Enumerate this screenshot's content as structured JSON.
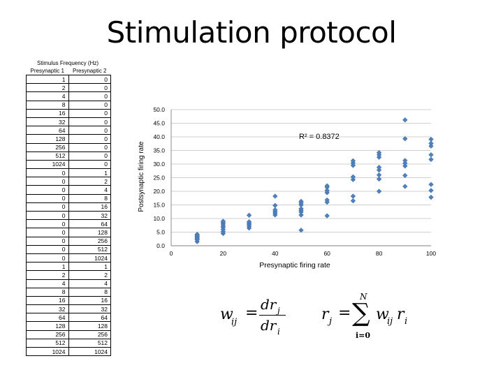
{
  "slide": {
    "title": "Stimulation protocol"
  },
  "stim_table": {
    "caption": "Stimulus Frequency (Hz)",
    "headers": [
      "Presynaptic 1",
      "Presynaptic 2"
    ],
    "rows": [
      [
        "1",
        "0"
      ],
      [
        "2",
        "0"
      ],
      [
        "4",
        "0"
      ],
      [
        "8",
        "0"
      ],
      [
        "16",
        "0"
      ],
      [
        "32",
        "0"
      ],
      [
        "64",
        "0"
      ],
      [
        "128",
        "0"
      ],
      [
        "256",
        "0"
      ],
      [
        "512",
        "0"
      ],
      [
        "1024",
        "0"
      ],
      [
        "0",
        "1"
      ],
      [
        "0",
        "2"
      ],
      [
        "0",
        "4"
      ],
      [
        "0",
        "8"
      ],
      [
        "0",
        "16"
      ],
      [
        "0",
        "32"
      ],
      [
        "0",
        "64"
      ],
      [
        "0",
        "128"
      ],
      [
        "0",
        "256"
      ],
      [
        "0",
        "512"
      ],
      [
        "0",
        "1024"
      ],
      [
        "1",
        "1"
      ],
      [
        "2",
        "2"
      ],
      [
        "4",
        "4"
      ],
      [
        "8",
        "8"
      ],
      [
        "16",
        "16"
      ],
      [
        "32",
        "32"
      ],
      [
        "64",
        "64"
      ],
      [
        "128",
        "128"
      ],
      [
        "256",
        "256"
      ],
      [
        "512",
        "512"
      ],
      [
        "1024",
        "1024"
      ]
    ]
  },
  "chart_data": {
    "type": "scatter",
    "title": "",
    "xlabel": "Presynaptic firing rate",
    "ylabel": "Postsynaptic firing rate",
    "xlim": [
      0,
      100
    ],
    "ylim": [
      0,
      50
    ],
    "xticks": [
      "0",
      "20",
      "40",
      "60",
      "80",
      "100"
    ],
    "yticks": [
      "0.0",
      "5.0",
      "10.0",
      "15.0",
      "20.0",
      "25.0",
      "30.0",
      "35.0",
      "40.0",
      "45.0",
      "50.0"
    ],
    "grid": "horizontal",
    "annotation": "R² = 0.8372",
    "marker_color": "#4f81bd",
    "points": [
      [
        10,
        1.5
      ],
      [
        10,
        2.2
      ],
      [
        10,
        2.8
      ],
      [
        10,
        3.2
      ],
      [
        10,
        3.8
      ],
      [
        10,
        4.2
      ],
      [
        10,
        2.5
      ],
      [
        10,
        3.5
      ],
      [
        20,
        4.5
      ],
      [
        20,
        5.2
      ],
      [
        20,
        6.0
      ],
      [
        20,
        6.8
      ],
      [
        20,
        7.3
      ],
      [
        20,
        8.0
      ],
      [
        20,
        8.5
      ],
      [
        20,
        9.0
      ],
      [
        30,
        6.5
      ],
      [
        30,
        7.2
      ],
      [
        30,
        7.8
      ],
      [
        30,
        8.3
      ],
      [
        30,
        8.8
      ],
      [
        30,
        11.2
      ],
      [
        40,
        11.3
      ],
      [
        40,
        12.0
      ],
      [
        40,
        12.6
      ],
      [
        40,
        13.2
      ],
      [
        40,
        14.8
      ],
      [
        40,
        18.2
      ],
      [
        50,
        5.7
      ],
      [
        50,
        11.3
      ],
      [
        50,
        12.4
      ],
      [
        50,
        13.0
      ],
      [
        50,
        13.6
      ],
      [
        50,
        15.0
      ],
      [
        50,
        15.7
      ],
      [
        50,
        16.3
      ],
      [
        60,
        11.0
      ],
      [
        60,
        16.0
      ],
      [
        60,
        16.8
      ],
      [
        60,
        19.5
      ],
      [
        60,
        20.3
      ],
      [
        60,
        21.5
      ],
      [
        60,
        22.0
      ],
      [
        70,
        16.5
      ],
      [
        70,
        18.2
      ],
      [
        70,
        24.3
      ],
      [
        70,
        25.3
      ],
      [
        70,
        29.5
      ],
      [
        70,
        30.4
      ],
      [
        70,
        31.2
      ],
      [
        80,
        20.0
      ],
      [
        80,
        24.5
      ],
      [
        80,
        26.0
      ],
      [
        80,
        27.8
      ],
      [
        80,
        28.8
      ],
      [
        80,
        32.5
      ],
      [
        80,
        33.4
      ],
      [
        80,
        34.2
      ],
      [
        90,
        21.8
      ],
      [
        90,
        25.8
      ],
      [
        90,
        29.3
      ],
      [
        90,
        30.3
      ],
      [
        90,
        31.3
      ],
      [
        90,
        39.3
      ],
      [
        90,
        46.2
      ],
      [
        100,
        17.8
      ],
      [
        100,
        20.3
      ],
      [
        100,
        22.5
      ],
      [
        100,
        31.7
      ],
      [
        100,
        33.4
      ],
      [
        100,
        36.6
      ],
      [
        100,
        37.6
      ],
      [
        100,
        39.1
      ]
    ]
  },
  "formulas": {
    "left": {
      "lhs": "w",
      "lhs_sub": "ij",
      "eq": "=",
      "num": "dr",
      "num_sub": "j",
      "den": "dr",
      "den_sub": "i"
    },
    "right": {
      "lhs": "r",
      "lhs_sub": "j",
      "eq": "=",
      "sum_top": "N",
      "sum_symbol": "∑",
      "sum_bottom": "i=0",
      "term": "w",
      "term_sub": "ij",
      "term2": "r",
      "term2_sub": "i"
    }
  }
}
